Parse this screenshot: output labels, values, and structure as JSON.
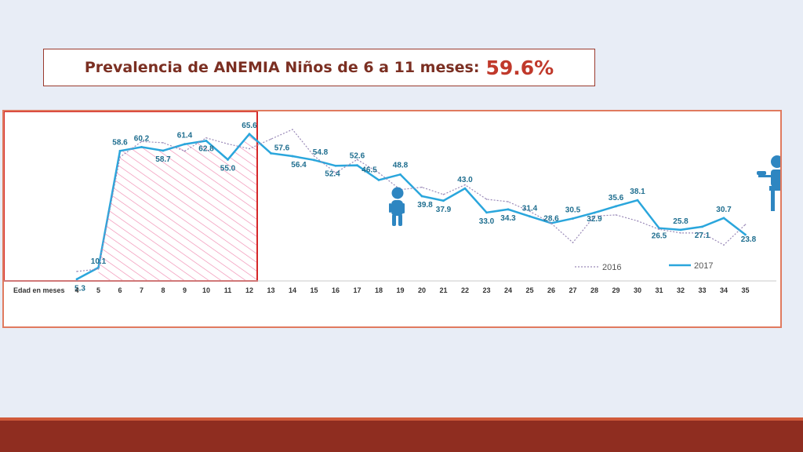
{
  "header": {
    "title": "Prevalencia de ANEMIA Niños de 6 a 11 meses:",
    "value": "59.6%"
  },
  "colors": {
    "series_2017": "#2aa6dc",
    "series_2016": "#9a8ab8",
    "highlight_border": "#d62828",
    "hatch": "#f08ab0"
  },
  "icons": [
    "child-walking-icon",
    "child-eating-icon"
  ],
  "chart_data": {
    "type": "line",
    "xlabel": "Edad en meses",
    "x": [
      4,
      5,
      6,
      7,
      8,
      9,
      10,
      11,
      12,
      13,
      14,
      15,
      16,
      17,
      18,
      19,
      20,
      21,
      22,
      23,
      24,
      25,
      26,
      27,
      28,
      29,
      30,
      31,
      32,
      33,
      34,
      35
    ],
    "x_labels": [
      "4",
      "5",
      "6",
      "7",
      "8",
      "9",
      "10",
      "11",
      "12",
      "13",
      "14",
      "15",
      "16",
      "17",
      "18",
      "19",
      "20",
      "21",
      "22",
      "23",
      "24",
      "25",
      "26",
      "27",
      "28",
      "29",
      "30",
      "31",
      "32",
      "33",
      "34",
      "35"
    ],
    "ylim": [
      0,
      75
    ],
    "series": [
      {
        "name": "2017",
        "values": [
          5.3,
          10.1,
          58.6,
          60.2,
          58.7,
          61.4,
          62.8,
          55.0,
          65.6,
          57.6,
          56.4,
          54.8,
          52.4,
          52.6,
          46.5,
          48.8,
          39.8,
          37.9,
          43.0,
          33.0,
          34.3,
          31.4,
          28.6,
          30.5,
          32.9,
          35.6,
          38.1,
          26.5,
          25.8,
          27.1,
          30.7,
          23.8
        ],
        "labels": [
          "5.3",
          "10.1",
          "58.6",
          "60.2",
          "58.7",
          "61.4",
          "62.8",
          "55.0",
          "65.6",
          "57.6",
          "56.4",
          "54.8",
          "52.4",
          "52.6",
          "46.5",
          "48.8",
          "39.8",
          "37.9",
          "43.0",
          "33.0",
          "34.3",
          "31.4",
          "28.6",
          "30.5",
          "32.9",
          "35.6",
          "38.1",
          "26.5",
          "25.8",
          "27.1",
          "30.7",
          "23.8"
        ]
      },
      {
        "name": "2016",
        "values": [
          8.5,
          9.5,
          56.0,
          62.5,
          62.0,
          58.5,
          64.0,
          61.5,
          59.5,
          63.5,
          67.5,
          56.5,
          49.5,
          55.0,
          49.5,
          42.5,
          43.5,
          40.5,
          44.5,
          38.5,
          37.5,
          33.5,
          28.5,
          20.5,
          31.5,
          32.0,
          29.5,
          26.0,
          24.5,
          24.5,
          19.5,
          28.0
        ]
      }
    ],
    "highlight_range": [
      6,
      11
    ],
    "legend_position": "bottom-right"
  }
}
